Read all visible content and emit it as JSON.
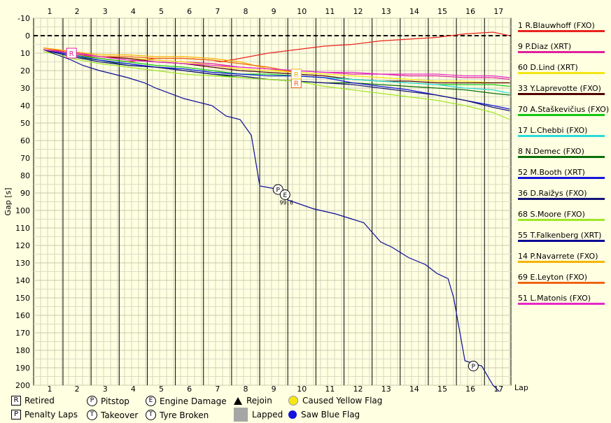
{
  "chart_data": {
    "type": "line",
    "title": "",
    "xlabel": "Lap",
    "ylabel": "Gap [s]",
    "ylim": [
      -10,
      200
    ],
    "y_inverted": true,
    "y_ticks": [
      -10,
      0,
      10,
      20,
      30,
      40,
      50,
      60,
      70,
      80,
      90,
      100,
      110,
      120,
      130,
      140,
      150,
      160,
      170,
      180,
      190,
      200
    ],
    "lap_ticks": [
      "1",
      "2",
      "3",
      "4",
      "5",
      "6",
      "7",
      "8",
      "9",
      "10",
      "11",
      "12",
      "13",
      "14",
      "15",
      "16",
      "17"
    ],
    "grid": true,
    "legend_position": "right",
    "series": [
      {
        "name": "1 R.Blauwhoff (FXO)",
        "color": "#e8231f",
        "x": [
          0,
          1,
          2,
          3,
          4,
          5,
          6,
          6.3,
          7,
          8,
          9,
          10,
          11,
          12,
          13,
          14,
          15,
          16,
          16.3,
          16.6
        ],
        "y": [
          7,
          10,
          13,
          15,
          13,
          13,
          14,
          15,
          13,
          10,
          8,
          6,
          5,
          3,
          2,
          1,
          -1,
          -2,
          -1,
          0
        ]
      },
      {
        "name": "9 P.Diaz (XRT)",
        "color": "#e020a0",
        "x": [
          0,
          1,
          2,
          3,
          4,
          5,
          6,
          7,
          8,
          9,
          10,
          11,
          12,
          13,
          14,
          15,
          16,
          16.6
        ],
        "y": [
          7,
          9,
          12,
          13,
          14,
          15,
          16,
          18,
          19,
          20,
          21,
          22,
          22,
          23,
          23,
          24,
          24,
          25
        ]
      },
      {
        "name": "60 D.Lind (XRT)",
        "color": "#f5e614",
        "x": [
          0,
          1,
          2,
          3,
          4,
          5,
          6,
          7,
          8,
          9,
          10,
          11,
          12,
          13,
          14,
          15,
          16,
          16.6
        ],
        "y": [
          8,
          10,
          12,
          13,
          14,
          15,
          17,
          19,
          20,
          21,
          22,
          23,
          24,
          25,
          26,
          26,
          27,
          27
        ]
      },
      {
        "name": "33 Y.Laprevotte (FXO)",
        "color": "#500000",
        "x": [
          0,
          1,
          2,
          3,
          4,
          5,
          6,
          7,
          8,
          9,
          10,
          11,
          12,
          13,
          14,
          15,
          16,
          16.6
        ],
        "y": [
          8,
          10,
          12,
          13,
          15,
          16,
          18,
          20,
          21,
          22,
          23,
          25,
          26,
          26,
          27,
          27,
          27,
          27
        ]
      },
      {
        "name": "70 A.Staškevičius (FXO)",
        "color": "#14c814",
        "x": [
          0,
          1,
          2,
          3,
          4,
          5,
          6,
          7,
          8,
          9,
          10,
          11,
          12,
          13,
          14,
          15,
          16,
          16.6
        ],
        "y": [
          8,
          11,
          13,
          15,
          17,
          18,
          20,
          22,
          22,
          23,
          24,
          25,
          26,
          27,
          28,
          28,
          28,
          29
        ]
      },
      {
        "name": "17 L.Chebbi (FXO)",
        "color": "#28dcdc",
        "x": [
          0,
          1,
          2,
          3,
          4,
          5,
          6,
          7,
          8,
          9,
          10,
          11,
          12,
          13,
          14,
          15,
          16,
          16.6
        ],
        "y": [
          8,
          11,
          14,
          16,
          18,
          19,
          21,
          22,
          23,
          23,
          24,
          25,
          26,
          27,
          28,
          30,
          31,
          33
        ]
      },
      {
        "name": "8 N.Demec (FXO)",
        "color": "#0a6e0a",
        "x": [
          0,
          1,
          2,
          3,
          4,
          5,
          6,
          7,
          8,
          9,
          10,
          11,
          12,
          13,
          14,
          15,
          16,
          16.6
        ],
        "y": [
          8,
          12,
          14,
          17,
          18,
          20,
          22,
          24,
          25,
          26,
          27,
          27,
          28,
          29,
          30,
          31,
          33,
          34
        ]
      },
      {
        "name": "52 M.Booth (XRT)",
        "color": "#1414dc",
        "x": [
          0,
          1,
          2,
          3,
          4,
          5,
          6,
          7,
          8,
          9,
          10,
          11,
          12,
          13,
          14,
          15,
          16,
          16.6
        ],
        "y": [
          8,
          11,
          14,
          16,
          18,
          19,
          21,
          22,
          23,
          23,
          24,
          27,
          29,
          31,
          34,
          37,
          40,
          42
        ]
      },
      {
        "name": "36 D.Raižys (FXO)",
        "color": "#141478",
        "x": [
          0,
          1,
          2,
          3,
          4,
          5,
          6,
          7,
          8,
          9,
          10,
          11,
          12,
          13,
          14,
          15,
          16,
          16.6
        ],
        "y": [
          8,
          12,
          15,
          17,
          18,
          20,
          22,
          23,
          25,
          26,
          27,
          28,
          30,
          32,
          34,
          37,
          41,
          43
        ]
      },
      {
        "name": "68 S.Moore (FXO)",
        "color": "#a0e628",
        "x": [
          0,
          1,
          2,
          3,
          4,
          5,
          6,
          7,
          8,
          9,
          10,
          11,
          12,
          13,
          14,
          15,
          16,
          16.6
        ],
        "y": [
          9,
          13,
          16,
          18,
          20,
          22,
          23,
          24,
          25,
          26,
          29,
          31,
          33,
          35,
          37,
          40,
          44,
          48
        ]
      },
      {
        "name": "55 T.Falkenberg (XRT)",
        "color": "#0a0a96",
        "x": [
          0,
          1,
          1.4,
          2,
          3,
          3.6,
          4,
          5,
          6,
          6.5,
          7,
          7.4,
          7.7,
          8.4,
          8.7,
          9.6,
          10.4,
          11,
          11.4,
          12,
          12.4,
          13,
          13.6,
          14,
          14.4,
          14.6,
          15,
          15.6,
          16,
          16.5
        ],
        "y": [
          8,
          14,
          17,
          20,
          24,
          27,
          30,
          36,
          40,
          46,
          48,
          57,
          86,
          88,
          94,
          99,
          102,
          105,
          107,
          118,
          121,
          127,
          131,
          136,
          139,
          150,
          186,
          189,
          200,
          208
        ]
      },
      {
        "name": "14 P.Navarrete (FXO)",
        "color": "#f5b400",
        "x": [
          0,
          1,
          2,
          3,
          4,
          5,
          6,
          7,
          8,
          9
        ],
        "y": [
          7,
          9,
          11,
          11,
          12,
          12,
          13,
          15,
          19,
          21
        ]
      },
      {
        "name": "69 E.Leyton (FXO)",
        "color": "#f06414",
        "x": [
          0,
          1,
          2,
          3,
          4,
          5,
          6,
          7,
          8,
          9
        ],
        "y": [
          8,
          10,
          12,
          12,
          13,
          13,
          14,
          16,
          18,
          21
        ]
      },
      {
        "name": "51 L.Matonis (FXO)",
        "color": "#e628c8",
        "x": [
          0,
          1,
          2,
          3,
          4,
          5,
          6,
          7,
          8,
          9,
          10,
          11,
          12,
          13,
          14,
          15,
          16,
          16.6
        ],
        "y": [
          8,
          10,
          12,
          14,
          15,
          16,
          17,
          18,
          19,
          20,
          21,
          21,
          22,
          22,
          22,
          23,
          23,
          24
        ]
      }
    ],
    "events": [
      {
        "type": "retired",
        "symbol": "R",
        "lap": 1,
        "gap": 10,
        "color": "#e020a0"
      },
      {
        "type": "retired",
        "symbol": "R",
        "lap": 9,
        "gap": 27,
        "color": "#f06414"
      },
      {
        "type": "retired",
        "symbol": "R",
        "lap": 9,
        "gap": 22,
        "color": "#f5b400"
      },
      {
        "type": "pitstop",
        "symbol": "P",
        "lap": 8.35,
        "gap": 88
      },
      {
        "type": "engine_damage",
        "symbol": "E",
        "lap": 8.6,
        "gap": 91,
        "label": "99.6"
      },
      {
        "type": "pitstop",
        "symbol": "P",
        "lap": 15.3,
        "gap": 189
      }
    ]
  },
  "legend_items": [
    {
      "label": "Retired",
      "symbol": "R",
      "kind": "square"
    },
    {
      "label": "Penalty Laps",
      "symbol": "P",
      "kind": "square"
    },
    {
      "label": "Pitstop",
      "symbol": "P",
      "kind": "circle"
    },
    {
      "label": "Takeover",
      "symbol": "T",
      "kind": "circle"
    },
    {
      "label": "Engine Damage",
      "symbol": "E",
      "kind": "circle"
    },
    {
      "label": "Tyre Broken",
      "symbol": "T",
      "kind": "circle"
    },
    {
      "label": "Rejoin",
      "kind": "triangle"
    },
    {
      "label": "Lapped",
      "kind": "grey"
    },
    {
      "label": "Caused Yellow Flag",
      "kind": "dot",
      "color": "#f5e614"
    },
    {
      "label": "Saw Blue Flag",
      "kind": "dot",
      "color": "#1414dc"
    }
  ]
}
